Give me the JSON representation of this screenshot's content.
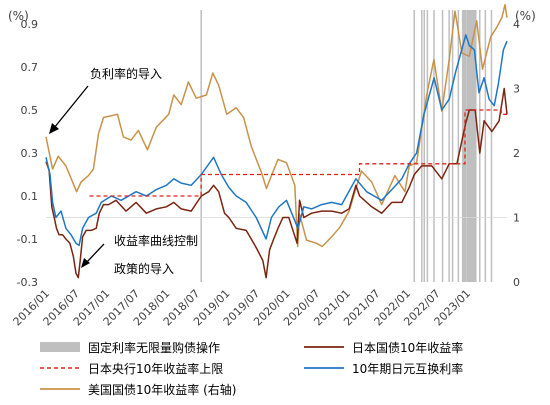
{
  "chart_data": {
    "type": "line",
    "left_axis": {
      "unit": "(%)",
      "ylim": [
        -0.3,
        0.9
      ],
      "ticks": [
        "0.9",
        "0.7",
        "0.5",
        "0.3",
        "0.1",
        "-0.1",
        "-0.3"
      ]
    },
    "right_axis": {
      "unit": "(%)",
      "ylim": [
        0,
        4
      ],
      "ticks": [
        "4",
        "3",
        "2",
        "1",
        "0"
      ],
      "series": "美国国债10年收益率 (右轴)"
    },
    "x_axis": {
      "range": [
        "2016-01",
        "2023-09"
      ],
      "ticks": [
        "2016/01",
        "2016/07",
        "2017/01",
        "2017/07",
        "2018/01",
        "2018/07",
        "2019/01",
        "2019/07",
        "2020/01",
        "2020/07",
        "2021/01",
        "2021/07",
        "2022/01",
        "2022/07",
        "2023/01"
      ]
    },
    "annotations": {
      "negative_rate": "负利率的导入",
      "ycc_line1": "收益率曲线控制",
      "ycc_line2": "政策的导入"
    },
    "legend": [
      {
        "label": "固定利率无限量购债操作",
        "color": "#bfbfbf",
        "style": "band"
      },
      {
        "label": "日本国债10年收益率",
        "color": "#7b2410",
        "style": "line"
      },
      {
        "label": "日本央行10年收益率上限",
        "color": "#e0201b",
        "style": "dashed"
      },
      {
        "label": "10年期日元互换利率",
        "color": "#1f77c4",
        "style": "line"
      },
      {
        "label": "美国国债10年收益率 (右轴)",
        "color": "#c8924a",
        "style": "line"
      }
    ],
    "fixed_rate_operation_periods": [
      [
        "2018-07-27",
        "2018-08-03"
      ],
      [
        "2022-02-10",
        "2022-02-16"
      ],
      [
        "2022-03-28",
        "2022-03-31"
      ],
      [
        "2022-04-12",
        "2022-04-15"
      ],
      [
        "2022-05-01",
        "2022-05-08"
      ],
      [
        "2022-06-10",
        "2022-06-14"
      ],
      [
        "2022-08-01",
        "2022-08-05"
      ],
      [
        "2022-09-10",
        "2022-09-14"
      ],
      [
        "2022-10-01",
        "2022-10-05"
      ],
      [
        "2022-11-05",
        "2022-11-10"
      ],
      [
        "2022-12-01",
        "2022-12-31"
      ],
      [
        "2023-01-01",
        "2023-02-28"
      ],
      [
        "2023-03-15",
        "2023-03-22"
      ],
      [
        "2023-04-18",
        "2023-04-22"
      ],
      [
        "2023-05-25",
        "2023-05-30"
      ]
    ],
    "series": [
      {
        "name": "日本国债10年收益率",
        "color": "#7b2410",
        "axis": "left",
        "points": [
          [
            "2016-01-01",
            0.26
          ],
          [
            "2016-01-20",
            0.22
          ],
          [
            "2016-02-05",
            0.05
          ],
          [
            "2016-02-20",
            0.0
          ],
          [
            "2016-03-05",
            -0.05
          ],
          [
            "2016-03-20",
            -0.08
          ],
          [
            "2016-04-10",
            -0.08
          ],
          [
            "2016-05-01",
            -0.1
          ],
          [
            "2016-05-25",
            -0.12
          ],
          [
            "2016-06-15",
            -0.18
          ],
          [
            "2016-07-01",
            -0.26
          ],
          [
            "2016-07-15",
            -0.28
          ],
          [
            "2016-07-27",
            -0.2
          ],
          [
            "2016-08-10",
            -0.09
          ],
          [
            "2016-09-01",
            -0.06
          ],
          [
            "2016-10-01",
            -0.06
          ],
          [
            "2016-11-01",
            -0.05
          ],
          [
            "2016-11-20",
            0.02
          ],
          [
            "2016-12-15",
            0.06
          ],
          [
            "2017-01-15",
            0.06
          ],
          [
            "2017-03-01",
            0.08
          ],
          [
            "2017-05-01",
            0.03
          ],
          [
            "2017-07-01",
            0.07
          ],
          [
            "2017-09-01",
            0.02
          ],
          [
            "2017-11-01",
            0.04
          ],
          [
            "2018-01-01",
            0.05
          ],
          [
            "2018-02-15",
            0.07
          ],
          [
            "2018-04-01",
            0.04
          ],
          [
            "2018-06-01",
            0.03
          ],
          [
            "2018-08-01",
            0.1
          ],
          [
            "2018-09-15",
            0.12
          ],
          [
            "2018-10-15",
            0.15
          ],
          [
            "2018-11-15",
            0.12
          ],
          [
            "2018-12-20",
            0.02
          ],
          [
            "2019-01-15",
            0.0
          ],
          [
            "2019-03-01",
            -0.05
          ],
          [
            "2019-05-01",
            -0.06
          ],
          [
            "2019-07-01",
            -0.14
          ],
          [
            "2019-08-10",
            -0.2
          ],
          [
            "2019-08-30",
            -0.28
          ],
          [
            "2019-09-20",
            -0.15
          ],
          [
            "2019-10-15",
            -0.1
          ],
          [
            "2019-11-10",
            -0.05
          ],
          [
            "2019-12-10",
            0.0
          ],
          [
            "2020-01-15",
            0.0
          ],
          [
            "2020-03-05",
            -0.12
          ],
          [
            "2020-03-20",
            0.08
          ],
          [
            "2020-04-15",
            0.0
          ],
          [
            "2020-06-01",
            0.02
          ],
          [
            "2020-08-01",
            0.03
          ],
          [
            "2020-10-01",
            0.03
          ],
          [
            "2020-12-01",
            0.02
          ],
          [
            "2021-01-15",
            0.04
          ],
          [
            "2021-02-25",
            0.15
          ],
          [
            "2021-03-20",
            0.1
          ],
          [
            "2021-06-01",
            0.05
          ],
          [
            "2021-08-01",
            0.02
          ],
          [
            "2021-10-01",
            0.07
          ],
          [
            "2021-12-01",
            0.07
          ],
          [
            "2022-01-15",
            0.14
          ],
          [
            "2022-02-15",
            0.2
          ],
          [
            "2022-04-01",
            0.24
          ],
          [
            "2022-06-01",
            0.24
          ],
          [
            "2022-08-01",
            0.18
          ],
          [
            "2022-09-15",
            0.25
          ],
          [
            "2022-11-01",
            0.25
          ],
          [
            "2022-12-25",
            0.44
          ],
          [
            "2023-01-15",
            0.5
          ],
          [
            "2023-02-20",
            0.5
          ],
          [
            "2023-03-20",
            0.3
          ],
          [
            "2023-04-15",
            0.45
          ],
          [
            "2023-06-01",
            0.4
          ],
          [
            "2023-07-15",
            0.45
          ],
          [
            "2023-08-15",
            0.6
          ],
          [
            "2023-09-01",
            0.48
          ]
        ]
      },
      {
        "name": "日本央行10年收益率上限",
        "color": "#e0201b",
        "axis": "left",
        "points": [
          [
            "2016-09-21",
            0.1
          ],
          [
            "2018-07-31",
            0.1
          ],
          [
            "2018-07-31",
            0.2
          ],
          [
            "2021-03-19",
            0.2
          ],
          [
            "2021-03-19",
            0.25
          ],
          [
            "2022-12-20",
            0.25
          ],
          [
            "2022-12-20",
            0.5
          ],
          [
            "2023-07-28",
            0.5
          ],
          [
            "2023-07-28",
            0.48
          ],
          [
            "2023-09-01",
            0.48
          ]
        ]
      },
      {
        "name": "10年期日元互换利率",
        "color": "#1f77c4",
        "axis": "left",
        "points": [
          [
            "2016-01-01",
            0.28
          ],
          [
            "2016-01-25",
            0.2
          ],
          [
            "2016-02-10",
            0.07
          ],
          [
            "2016-03-01",
            0.0
          ],
          [
            "2016-04-01",
            0.03
          ],
          [
            "2016-05-01",
            -0.05
          ],
          [
            "2016-06-01",
            -0.08
          ],
          [
            "2016-07-01",
            -0.12
          ],
          [
            "2016-07-20",
            -0.13
          ],
          [
            "2016-08-10",
            -0.05
          ],
          [
            "2016-09-15",
            0.0
          ],
          [
            "2016-11-01",
            0.02
          ],
          [
            "2016-12-01",
            0.07
          ],
          [
            "2017-02-01",
            0.1
          ],
          [
            "2017-04-01",
            0.08
          ],
          [
            "2017-07-01",
            0.12
          ],
          [
            "2017-09-01",
            0.1
          ],
          [
            "2017-11-01",
            0.13
          ],
          [
            "2018-01-01",
            0.15
          ],
          [
            "2018-02-15",
            0.18
          ],
          [
            "2018-04-01",
            0.16
          ],
          [
            "2018-06-01",
            0.15
          ],
          [
            "2018-08-01",
            0.2
          ],
          [
            "2018-10-15",
            0.28
          ],
          [
            "2018-12-01",
            0.2
          ],
          [
            "2019-01-15",
            0.14
          ],
          [
            "2019-03-01",
            0.1
          ],
          [
            "2019-05-01",
            0.07
          ],
          [
            "2019-07-01",
            0.0
          ],
          [
            "2019-08-30",
            -0.1
          ],
          [
            "2019-10-01",
            0.0
          ],
          [
            "2019-11-15",
            0.05
          ],
          [
            "2020-01-01",
            0.08
          ],
          [
            "2020-03-10",
            -0.05
          ],
          [
            "2020-04-15",
            0.05
          ],
          [
            "2020-06-01",
            0.04
          ],
          [
            "2020-08-01",
            0.06
          ],
          [
            "2020-10-01",
            0.07
          ],
          [
            "2020-12-01",
            0.06
          ],
          [
            "2021-02-25",
            0.18
          ],
          [
            "2021-05-01",
            0.12
          ],
          [
            "2021-08-01",
            0.08
          ],
          [
            "2021-10-01",
            0.13
          ],
          [
            "2021-12-01",
            0.18
          ],
          [
            "2022-01-15",
            0.25
          ],
          [
            "2022-03-01",
            0.3
          ],
          [
            "2022-04-15",
            0.48
          ],
          [
            "2022-06-15",
            0.65
          ],
          [
            "2022-08-01",
            0.5
          ],
          [
            "2022-09-15",
            0.55
          ],
          [
            "2022-10-25",
            0.68
          ],
          [
            "2022-12-25",
            0.85
          ],
          [
            "2023-01-15",
            0.8
          ],
          [
            "2023-02-15",
            0.78
          ],
          [
            "2023-03-15",
            0.58
          ],
          [
            "2023-04-15",
            0.65
          ],
          [
            "2023-05-15",
            0.55
          ],
          [
            "2023-06-15",
            0.52
          ],
          [
            "2023-07-10",
            0.62
          ],
          [
            "2023-08-10",
            0.78
          ],
          [
            "2023-09-01",
            0.82
          ]
        ]
      },
      {
        "name": "美国国债10年收益率 (右轴)",
        "color": "#c8924a",
        "axis": "right",
        "points": [
          [
            "2016-01-01",
            2.25
          ],
          [
            "2016-02-10",
            1.75
          ],
          [
            "2016-03-15",
            1.95
          ],
          [
            "2016-05-01",
            1.8
          ],
          [
            "2016-07-05",
            1.4
          ],
          [
            "2016-08-01",
            1.55
          ],
          [
            "2016-09-15",
            1.65
          ],
          [
            "2016-10-15",
            1.75
          ],
          [
            "2016-11-15",
            2.3
          ],
          [
            "2016-12-15",
            2.55
          ],
          [
            "2017-03-10",
            2.6
          ],
          [
            "2017-04-15",
            2.25
          ],
          [
            "2017-06-01",
            2.2
          ],
          [
            "2017-07-15",
            2.35
          ],
          [
            "2017-09-08",
            2.05
          ],
          [
            "2017-11-01",
            2.4
          ],
          [
            "2018-01-15",
            2.6
          ],
          [
            "2018-02-15",
            2.9
          ],
          [
            "2018-04-01",
            2.75
          ],
          [
            "2018-05-15",
            3.1
          ],
          [
            "2018-07-01",
            2.85
          ],
          [
            "2018-09-01",
            2.9
          ],
          [
            "2018-10-10",
            3.24
          ],
          [
            "2018-11-15",
            3.05
          ],
          [
            "2019-01-03",
            2.6
          ],
          [
            "2019-03-01",
            2.7
          ],
          [
            "2019-04-15",
            2.55
          ],
          [
            "2019-06-01",
            2.1
          ],
          [
            "2019-08-01",
            1.7
          ],
          [
            "2019-09-01",
            1.45
          ],
          [
            "2019-10-01",
            1.65
          ],
          [
            "2019-11-10",
            1.9
          ],
          [
            "2020-01-01",
            1.85
          ],
          [
            "2020-02-20",
            1.5
          ],
          [
            "2020-03-09",
            0.55
          ],
          [
            "2020-03-20",
            1.05
          ],
          [
            "2020-05-01",
            0.65
          ],
          [
            "2020-07-01",
            0.6
          ],
          [
            "2020-08-05",
            0.55
          ],
          [
            "2020-10-01",
            0.7
          ],
          [
            "2020-11-20",
            0.85
          ],
          [
            "2021-01-15",
            1.1
          ],
          [
            "2021-02-25",
            1.45
          ],
          [
            "2021-03-31",
            1.72
          ],
          [
            "2021-06-01",
            1.55
          ],
          [
            "2021-08-01",
            1.2
          ],
          [
            "2021-10-20",
            1.65
          ],
          [
            "2021-12-20",
            1.4
          ],
          [
            "2022-01-15",
            1.8
          ],
          [
            "2022-03-01",
            1.85
          ],
          [
            "2022-05-01",
            2.9
          ],
          [
            "2022-06-14",
            3.45
          ],
          [
            "2022-08-01",
            2.65
          ],
          [
            "2022-09-15",
            3.45
          ],
          [
            "2022-10-20",
            4.2
          ],
          [
            "2022-12-01",
            3.55
          ],
          [
            "2023-01-15",
            3.5
          ],
          [
            "2023-03-01",
            4.05
          ],
          [
            "2023-04-05",
            3.3
          ],
          [
            "2023-05-25",
            3.8
          ],
          [
            "2023-07-01",
            3.95
          ],
          [
            "2023-08-01",
            4.1
          ],
          [
            "2023-08-20",
            4.3
          ],
          [
            "2023-09-01",
            4.1
          ]
        ]
      }
    ]
  }
}
